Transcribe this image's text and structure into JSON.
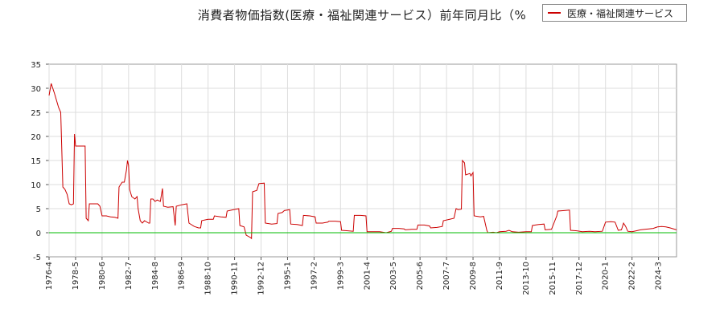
{
  "chart_data": {
    "type": "line",
    "title": "消費者物価指数(医療・福祉関連サービス）前年同月比（%",
    "xlabel": "",
    "ylabel": "",
    "ylim": [
      -5,
      35
    ],
    "yticks": [
      -5,
      0,
      5,
      10,
      15,
      20,
      25,
      30,
      35
    ],
    "xlim": [
      "1976-4",
      "2025-8"
    ],
    "xticks": [
      "1976-4",
      "1978-5",
      "1980-6",
      "1982-7",
      "1984-8",
      "1986-9",
      "1988-10",
      "1990-11",
      "1992-12",
      "1995-1",
      "1997-2",
      "1999-3",
      "2001-4",
      "2003-5",
      "2005-6",
      "2007-7",
      "2009-8",
      "2011-9",
      "2013-10",
      "2015-11",
      "2017-12",
      "2020-1",
      "2022-2",
      "2024-3"
    ],
    "grid": true,
    "legend_position": "top-right",
    "zero_line": true,
    "series": [
      {
        "name": "医療・福祉関連サービス",
        "color": "#cc0000",
        "points": [
          [
            "1976-4",
            28.5
          ],
          [
            "1976-6",
            31
          ],
          [
            "1976-9",
            29
          ],
          [
            "1977-1",
            26
          ],
          [
            "1977-3",
            25
          ],
          [
            "1977-5",
            9.5
          ],
          [
            "1977-7",
            9
          ],
          [
            "1977-9",
            8
          ],
          [
            "1977-11",
            6
          ],
          [
            "1978-1",
            5.8
          ],
          [
            "1978-3",
            6
          ],
          [
            "1978-4",
            20.5
          ],
          [
            "1978-5",
            18
          ],
          [
            "1978-8",
            18
          ],
          [
            "1978-11",
            18
          ],
          [
            "1979-2",
            18
          ],
          [
            "1979-3",
            3
          ],
          [
            "1979-5",
            2.5
          ],
          [
            "1979-6",
            6
          ],
          [
            "1979-10",
            6
          ],
          [
            "1980-2",
            6
          ],
          [
            "1980-4",
            5.5
          ],
          [
            "1980-6",
            3.5
          ],
          [
            "1980-10",
            3.5
          ],
          [
            "1981-2",
            3.3
          ],
          [
            "1981-6",
            3.2
          ],
          [
            "1981-9",
            3
          ],
          [
            "1981-10",
            9.5
          ],
          [
            "1982-1",
            10.5
          ],
          [
            "1982-3",
            10.5
          ],
          [
            "1982-5",
            13
          ],
          [
            "1982-6",
            15
          ],
          [
            "1982-7",
            14
          ],
          [
            "1982-8",
            9
          ],
          [
            "1982-10",
            7.5
          ],
          [
            "1983-1",
            7
          ],
          [
            "1983-3",
            7.5
          ],
          [
            "1983-4",
            5
          ],
          [
            "1983-6",
            2.5
          ],
          [
            "1983-8",
            2
          ],
          [
            "1983-10",
            2.5
          ],
          [
            "1984-2",
            2
          ],
          [
            "1984-3",
            2
          ],
          [
            "1984-4",
            7
          ],
          [
            "1984-6",
            7
          ],
          [
            "1984-8",
            6.5
          ],
          [
            "1984-10",
            6.8
          ],
          [
            "1985-1",
            6.5
          ],
          [
            "1985-3",
            9.2
          ],
          [
            "1985-4",
            5.5
          ],
          [
            "1985-8",
            5.3
          ],
          [
            "1986-1",
            5.4
          ],
          [
            "1986-3",
            1.5
          ],
          [
            "1986-4",
            5.5
          ],
          [
            "1986-9",
            5.8
          ],
          [
            "1987-2",
            6
          ],
          [
            "1987-4",
            2
          ],
          [
            "1987-9",
            1.3
          ],
          [
            "1988-1",
            1
          ],
          [
            "1988-3",
            1
          ],
          [
            "1988-4",
            2.5
          ],
          [
            "1988-10",
            2.8
          ],
          [
            "1989-3",
            2.8
          ],
          [
            "1989-4",
            3.5
          ],
          [
            "1989-10",
            3.3
          ],
          [
            "1990-3",
            3.2
          ],
          [
            "1990-4",
            4.5
          ],
          [
            "1990-10",
            4.8
          ],
          [
            "1991-3",
            5
          ],
          [
            "1991-4",
            1.5
          ],
          [
            "1991-8",
            1.2
          ],
          [
            "1991-10",
            -0.5
          ],
          [
            "1992-2",
            -1
          ],
          [
            "1992-3",
            -1.2
          ],
          [
            "1992-4",
            8.5
          ],
          [
            "1992-8",
            8.8
          ],
          [
            "1992-10",
            10.2
          ],
          [
            "1993-3",
            10.3
          ],
          [
            "1993-4",
            2
          ],
          [
            "1993-10",
            1.8
          ],
          [
            "1994-3",
            1.9
          ],
          [
            "1994-4",
            4
          ],
          [
            "1994-8",
            4.2
          ],
          [
            "1994-10",
            4.6
          ],
          [
            "1995-3",
            4.8
          ],
          [
            "1995-4",
            1.8
          ],
          [
            "1995-10",
            1.7
          ],
          [
            "1996-3",
            1.5
          ],
          [
            "1996-4",
            3.6
          ],
          [
            "1996-10",
            3.5
          ],
          [
            "1997-3",
            3.3
          ],
          [
            "1997-4",
            2
          ],
          [
            "1997-10",
            2
          ],
          [
            "1998-3",
            2.2
          ],
          [
            "1998-4",
            2.4
          ],
          [
            "1998-10",
            2.4
          ],
          [
            "1999-3",
            2.3
          ],
          [
            "1999-4",
            0.5
          ],
          [
            "1999-10",
            0.4
          ],
          [
            "2000-3",
            0.3
          ],
          [
            "2000-4",
            3.6
          ],
          [
            "2000-10",
            3.6
          ],
          [
            "2001-3",
            3.5
          ],
          [
            "2001-4",
            0.2
          ],
          [
            "2001-10",
            0.2
          ],
          [
            "2002-3",
            0.2
          ],
          [
            "2002-4",
            0.2
          ],
          [
            "2002-10",
            0
          ],
          [
            "2003-3",
            0.3
          ],
          [
            "2003-4",
            0.9
          ],
          [
            "2003-10",
            0.9
          ],
          [
            "2004-3",
            0.8
          ],
          [
            "2004-4",
            0.6
          ],
          [
            "2004-10",
            0.7
          ],
          [
            "2005-3",
            0.7
          ],
          [
            "2005-4",
            1.6
          ],
          [
            "2005-10",
            1.6
          ],
          [
            "2006-3",
            1.4
          ],
          [
            "2006-4",
            1
          ],
          [
            "2006-10",
            1.1
          ],
          [
            "2007-3",
            1.3
          ],
          [
            "2007-4",
            2.5
          ],
          [
            "2007-10",
            2.8
          ],
          [
            "2008-2",
            3
          ],
          [
            "2008-4",
            5
          ],
          [
            "2008-6",
            4.8
          ],
          [
            "2008-9",
            4.9
          ],
          [
            "2008-10",
            15
          ],
          [
            "2008-12",
            14.5
          ],
          [
            "2009-1",
            12
          ],
          [
            "2009-5",
            12.3
          ],
          [
            "2009-6",
            11.8
          ],
          [
            "2009-8",
            12.5
          ],
          [
            "2009-9",
            3.5
          ],
          [
            "2010-3",
            3.3
          ],
          [
            "2010-6",
            3.4
          ],
          [
            "2010-9",
            0.5
          ],
          [
            "2010-10",
            0
          ],
          [
            "2011-3",
            0.1
          ],
          [
            "2011-6",
            0
          ],
          [
            "2011-9",
            0.2
          ],
          [
            "2012-3",
            0.3
          ],
          [
            "2012-6",
            0.5
          ],
          [
            "2012-9",
            0.2
          ],
          [
            "2013-3",
            0.1
          ],
          [
            "2013-10",
            0.2
          ],
          [
            "2014-3",
            0.2
          ],
          [
            "2014-4",
            1.5
          ],
          [
            "2014-10",
            1.7
          ],
          [
            "2015-3",
            1.8
          ],
          [
            "2015-4",
            0.6
          ],
          [
            "2015-10",
            0.7
          ],
          [
            "2016-3",
            3.5
          ],
          [
            "2016-4",
            4.5
          ],
          [
            "2016-10",
            4.6
          ],
          [
            "2017-3",
            4.7
          ],
          [
            "2017-4",
            0.5
          ],
          [
            "2017-10",
            0.4
          ],
          [
            "2018-3",
            0.2
          ],
          [
            "2018-10",
            0.3
          ],
          [
            "2019-3",
            0.2
          ],
          [
            "2019-10",
            0.3
          ],
          [
            "2020-1",
            2.2
          ],
          [
            "2020-6",
            2.3
          ],
          [
            "2020-10",
            2.2
          ],
          [
            "2021-1",
            0.5
          ],
          [
            "2021-4",
            0.6
          ],
          [
            "2021-6",
            2
          ],
          [
            "2021-8",
            1.3
          ],
          [
            "2021-10",
            0.3
          ],
          [
            "2022-2",
            0.2
          ],
          [
            "2022-6",
            0.4
          ],
          [
            "2022-10",
            0.6
          ],
          [
            "2023-2",
            0.7
          ],
          [
            "2023-6",
            0.8
          ],
          [
            "2023-10",
            0.9
          ],
          [
            "2024-2",
            1.2
          ],
          [
            "2024-6",
            1.3
          ],
          [
            "2024-10",
            1.2
          ],
          [
            "2025-2",
            1
          ],
          [
            "2025-8",
            0.6
          ]
        ]
      },
      {
        "name": "",
        "color": "#00bb00",
        "role": "zero-line",
        "points": [
          [
            "1976-4",
            0
          ],
          [
            "2025-8",
            0
          ]
        ]
      }
    ]
  }
}
